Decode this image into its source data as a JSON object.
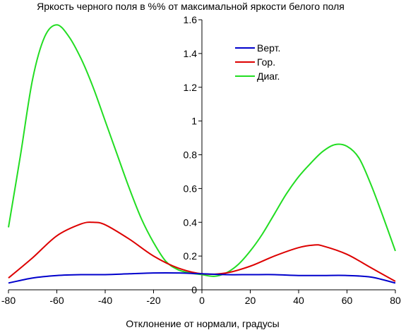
{
  "chart_data": {
    "type": "line",
    "title": "Яркость черного поля в %% от максимальной яркости белого поля",
    "xlabel": "Отклонение от нормали, градусы",
    "ylabel": "",
    "xlim": [
      -80,
      80
    ],
    "ylim": [
      0,
      1.6
    ],
    "x_ticks": [
      -80,
      -60,
      -40,
      -20,
      0,
      20,
      40,
      60,
      80
    ],
    "y_ticks": [
      0,
      0.2,
      0.4,
      0.6,
      0.8,
      1,
      1.2,
      1.4,
      1.6
    ],
    "x_tick_labels": [
      "-80",
      "-60",
      "-40",
      "-20",
      "0",
      "20",
      "40",
      "60",
      "80"
    ],
    "y_tick_labels": [
      "0",
      "0.2",
      "0.4",
      "0.6",
      "0.8",
      "1",
      "1.2",
      "1.4",
      "1.6"
    ],
    "grid": false,
    "legend_position": "top-right",
    "series": [
      {
        "name": "Верт.",
        "color": "#0000cc",
        "x": [
          -80,
          -70,
          -60,
          -50,
          -40,
          -30,
          -20,
          -10,
          0,
          10,
          20,
          30,
          40,
          50,
          60,
          70,
          80
        ],
        "y": [
          0.04,
          0.07,
          0.085,
          0.09,
          0.09,
          0.095,
          0.1,
          0.1,
          0.095,
          0.09,
          0.09,
          0.09,
          0.085,
          0.085,
          0.085,
          0.075,
          0.04
        ]
      },
      {
        "name": "Гор.",
        "color": "#dd0000",
        "x": [
          -80,
          -70,
          -60,
          -50,
          -45,
          -40,
          -30,
          -20,
          -10,
          0,
          10,
          20,
          30,
          40,
          46,
          50,
          60,
          70,
          80
        ],
        "y": [
          0.07,
          0.19,
          0.32,
          0.39,
          0.4,
          0.385,
          0.3,
          0.2,
          0.13,
          0.095,
          0.1,
          0.14,
          0.2,
          0.25,
          0.265,
          0.26,
          0.21,
          0.13,
          0.05
        ]
      },
      {
        "name": "Диаг.",
        "color": "#22dd22",
        "x": [
          -80,
          -75,
          -70,
          -65,
          -60,
          -55,
          -50,
          -45,
          -40,
          -35,
          -30,
          -25,
          -20,
          -15,
          -10,
          -5,
          0,
          5,
          10,
          15,
          20,
          25,
          30,
          35,
          40,
          45,
          50,
          55,
          60,
          65,
          70,
          75,
          80
        ],
        "y": [
          0.37,
          0.8,
          1.25,
          1.5,
          1.57,
          1.5,
          1.37,
          1.2,
          1.0,
          0.8,
          0.6,
          0.42,
          0.28,
          0.17,
          0.12,
          0.1,
          0.09,
          0.08,
          0.1,
          0.15,
          0.23,
          0.33,
          0.45,
          0.57,
          0.67,
          0.75,
          0.82,
          0.86,
          0.85,
          0.78,
          0.62,
          0.43,
          0.23
        ]
      }
    ]
  }
}
